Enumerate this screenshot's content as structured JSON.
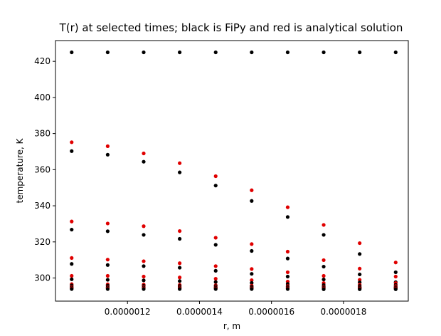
{
  "chart_data": {
    "type": "scatter",
    "title": "T(r) at selected times; black is FiPy and red is analytical solution",
    "xlabel": "r, m",
    "ylabel": "temperature, K",
    "xlim": [
      1e-06,
      1.98e-06
    ],
    "ylim": [
      287.2,
      431.5
    ],
    "xticks": [
      {
        "value": 1.2e-06,
        "label": "0.0000012"
      },
      {
        "value": 1.4e-06,
        "label": "0.0000014"
      },
      {
        "value": 1.6e-06,
        "label": "0.0000016"
      },
      {
        "value": 1.8e-06,
        "label": "0.0000018"
      }
    ],
    "yticks": [
      {
        "value": 300,
        "label": "300"
      },
      {
        "value": 320,
        "label": "320"
      },
      {
        "value": 340,
        "label": "340"
      },
      {
        "value": 360,
        "label": "360"
      },
      {
        "value": 380,
        "label": "380"
      },
      {
        "value": 400,
        "label": "400"
      },
      {
        "value": 420,
        "label": "420"
      }
    ],
    "grid": false,
    "x": [
      1.045e-06,
      1.145e-06,
      1.245e-06,
      1.345e-06,
      1.445e-06,
      1.545e-06,
      1.645e-06,
      1.745e-06,
      1.845e-06,
      1.945e-06
    ],
    "series": [
      {
        "color": "#000000",
        "values": [
          425,
          425,
          425,
          425,
          425,
          425,
          425,
          425,
          425,
          425
        ]
      },
      {
        "color": "#e00000",
        "values": [
          375.2,
          373.0,
          369.0,
          363.6,
          356.4,
          348.6,
          339.2,
          329.4,
          319.3,
          308.6
        ]
      },
      {
        "color": "#000000",
        "values": [
          370.3,
          368.3,
          364.4,
          358.5,
          351.2,
          342.7,
          333.8,
          323.9,
          313.3,
          303.2
        ]
      },
      {
        "color": "#e00000",
        "values": [
          331.3,
          330.2,
          328.7,
          326.0,
          322.3,
          318.8,
          314.6,
          309.9,
          305.2,
          300.8
        ]
      },
      {
        "color": "#000000",
        "values": [
          326.8,
          325.9,
          323.9,
          321.7,
          318.4,
          315.0,
          310.8,
          306.3,
          302.0,
          297.7
        ]
      },
      {
        "color": "#e00000",
        "values": [
          311.1,
          310.2,
          309.3,
          308.2,
          306.6,
          305.0,
          303.2,
          301.2,
          299.0,
          297.2
        ]
      },
      {
        "color": "#000000",
        "values": [
          307.8,
          307.2,
          306.6,
          305.7,
          304.0,
          302.3,
          300.8,
          299.2,
          297.6,
          296.2
        ]
      },
      {
        "color": "#e00000",
        "values": [
          301.2,
          301.2,
          300.8,
          300.3,
          299.6,
          298.8,
          298.0,
          297.2,
          296.3,
          295.6
        ]
      },
      {
        "color": "#000000",
        "values": [
          299.3,
          299.0,
          298.7,
          298.3,
          297.8,
          297.3,
          296.7,
          296.1,
          295.6,
          295.1
        ]
      },
      {
        "color": "#e00000",
        "values": [
          296.6,
          296.5,
          296.4,
          296.2,
          296.0,
          295.8,
          295.6,
          295.3,
          295.0,
          294.8
        ]
      },
      {
        "color": "#000000",
        "values": [
          295.9,
          295.8,
          295.7,
          295.6,
          295.5,
          295.3,
          295.2,
          295.0,
          294.8,
          294.6
        ]
      },
      {
        "color": "#e00000",
        "values": [
          295.2,
          295.1,
          295.1,
          295.0,
          294.9,
          294.8,
          294.7,
          294.6,
          294.5,
          294.4
        ]
      },
      {
        "color": "#000000",
        "values": [
          294.8,
          294.8,
          294.7,
          294.7,
          294.6,
          294.6,
          294.5,
          294.4,
          294.4,
          294.3
        ]
      },
      {
        "color": "#e00000",
        "values": [
          294.3,
          294.3,
          294.3,
          294.3,
          294.2,
          294.2,
          294.2,
          294.1,
          294.1,
          294.1
        ]
      },
      {
        "color": "#000000",
        "values": [
          293.9,
          293.9,
          293.9,
          293.9,
          293.9,
          293.9,
          293.9,
          293.8,
          293.8,
          293.8
        ]
      }
    ]
  }
}
